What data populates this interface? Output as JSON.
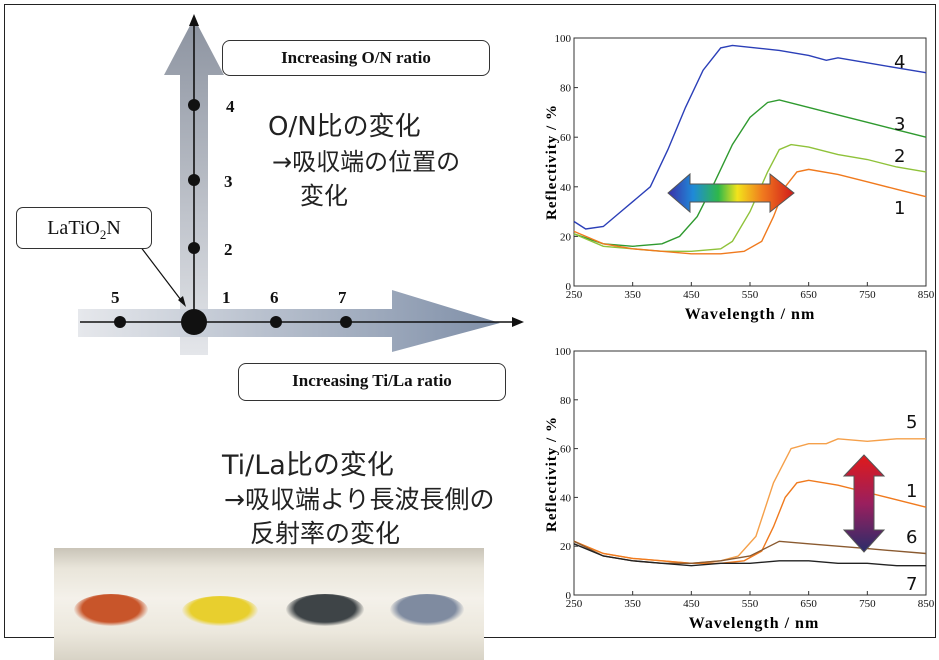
{
  "left_diagram": {
    "on_box_label": "Increasing O/N ratio",
    "tila_box_label": "Increasing Ti/La ratio",
    "origin_label_main": "LaTiO",
    "origin_label_sub": "2",
    "origin_label_end": "N",
    "vertical_points": [
      "1",
      "2",
      "3",
      "4"
    ],
    "horizontal_points": [
      "5",
      "6",
      "7"
    ],
    "on_note_line1": "O/N比の変化",
    "on_note_line2": "→吸収端の位置の",
    "on_note_line3": "変化",
    "tila_note_line1": "Ti/La比の変化",
    "tila_note_line2": "→吸収端より長波長側の",
    "tila_note_line3": "反射率の変化"
  },
  "photo": {
    "sample_colors": [
      "#c8552a",
      "#e8cf2e",
      "#3e4447",
      "#7f8ba0"
    ]
  },
  "chart_data": [
    {
      "type": "line",
      "xlabel": "Wavelength / nm",
      "ylabel": "Reflectivity / %",
      "xlim": [
        250,
        850
      ],
      "ylim": [
        0,
        100
      ],
      "x_ticks": [
        "250",
        "350",
        "450",
        "550",
        "650",
        "750",
        "850"
      ],
      "y_ticks": [
        "0",
        "20",
        "40",
        "60",
        "80",
        "100"
      ],
      "arrow": "horizontal-rainbow",
      "series": [
        {
          "name": "4",
          "color": "#2b3fb8",
          "x": [
            250,
            270,
            300,
            330,
            350,
            380,
            410,
            440,
            470,
            500,
            520,
            560,
            600,
            650,
            680,
            700,
            750,
            800,
            850
          ],
          "y": [
            26,
            23,
            24,
            30,
            34,
            40,
            55,
            72,
            87,
            96,
            97,
            96,
            95,
            93,
            91,
            92,
            90,
            88,
            86
          ]
        },
        {
          "name": "3",
          "color": "#2f9a2f",
          "x": [
            250,
            300,
            350,
            400,
            430,
            460,
            490,
            520,
            550,
            580,
            600,
            650,
            700,
            750,
            800,
            850
          ],
          "y": [
            21,
            17,
            16,
            17,
            20,
            28,
            42,
            57,
            68,
            74,
            75,
            72,
            69,
            66,
            63,
            60
          ]
        },
        {
          "name": "2",
          "color": "#8fc23a",
          "x": [
            250,
            300,
            350,
            400,
            450,
            500,
            520,
            550,
            580,
            600,
            620,
            650,
            700,
            750,
            800,
            850
          ],
          "y": [
            21,
            16,
            15,
            14,
            14,
            15,
            18,
            30,
            46,
            55,
            57,
            56,
            53,
            51,
            48,
            46
          ]
        },
        {
          "name": "1",
          "color": "#f07a1e",
          "x": [
            250,
            300,
            350,
            400,
            450,
            500,
            540,
            570,
            590,
            610,
            630,
            650,
            700,
            750,
            800,
            850
          ],
          "y": [
            22,
            17,
            15,
            14,
            13,
            13,
            14,
            18,
            28,
            40,
            46,
            47,
            45,
            42,
            39,
            36
          ]
        }
      ]
    },
    {
      "type": "line",
      "xlabel": "Wavelength / nm",
      "ylabel": "Reflectivity / %",
      "xlim": [
        250,
        850
      ],
      "ylim": [
        0,
        100
      ],
      "x_ticks": [
        "250",
        "350",
        "450",
        "550",
        "650",
        "750",
        "850"
      ],
      "y_ticks": [
        "0",
        "20",
        "40",
        "60",
        "80",
        "100"
      ],
      "arrow": "vertical-gradient",
      "series": [
        {
          "name": "5",
          "color": "#f5a04a",
          "x": [
            250,
            300,
            350,
            400,
            450,
            500,
            530,
            560,
            590,
            620,
            650,
            680,
            700,
            750,
            800,
            850
          ],
          "y": [
            22,
            17,
            15,
            14,
            13,
            14,
            16,
            24,
            46,
            60,
            62,
            62,
            64,
            63,
            64,
            64
          ]
        },
        {
          "name": "1",
          "color": "#f07a1e",
          "x": [
            250,
            300,
            350,
            400,
            450,
            500,
            540,
            570,
            590,
            610,
            630,
            650,
            700,
            750,
            800,
            850
          ],
          "y": [
            22,
            17,
            15,
            14,
            13,
            13,
            14,
            18,
            28,
            40,
            46,
            47,
            45,
            42,
            39,
            36
          ]
        },
        {
          "name": "6",
          "color": "#8a5a30",
          "x": [
            250,
            300,
            350,
            400,
            450,
            500,
            550,
            600,
            650,
            700,
            750,
            800,
            850
          ],
          "y": [
            22,
            16,
            14,
            13,
            13,
            14,
            16,
            22,
            21,
            20,
            19,
            18,
            17
          ]
        },
        {
          "name": "7",
          "color": "#222222",
          "x": [
            250,
            300,
            350,
            400,
            450,
            500,
            550,
            600,
            650,
            700,
            750,
            800,
            850
          ],
          "y": [
            21,
            16,
            14,
            13,
            12,
            13,
            13,
            14,
            14,
            13,
            13,
            12,
            12
          ]
        }
      ]
    }
  ]
}
